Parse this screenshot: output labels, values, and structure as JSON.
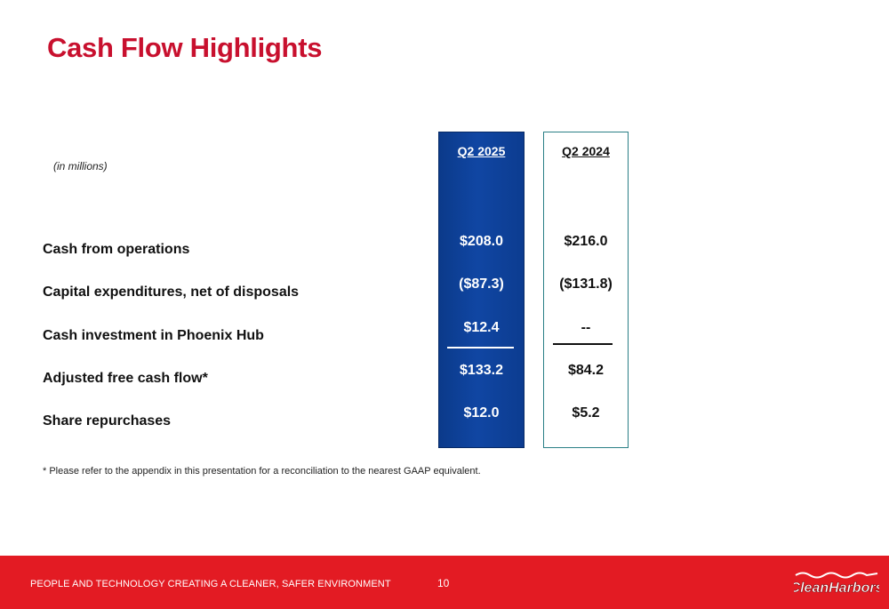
{
  "title": "Cash Flow Highlights",
  "units_note": "(in millions)",
  "columns": [
    {
      "header": "Q2 2025",
      "values": [
        "$208.0",
        "($87.3)",
        "$12.4",
        "$133.2",
        "$12.0"
      ]
    },
    {
      "header": "Q2 2024",
      "values": [
        "$216.0",
        "($131.8)",
        "--",
        "$84.2",
        "$5.2"
      ]
    }
  ],
  "rows": [
    "Cash from operations",
    "Capital expenditures, net of disposals",
    "Cash investment in Phoenix Hub",
    "Adjusted free cash flow*",
    "Share repurchases"
  ],
  "footnote": "* Please refer to the appendix in this presentation for a reconciliation to the nearest GAAP equivalent.",
  "footer": {
    "tagline": "PEOPLE AND TECHNOLOGY CREATING A CLEANER, SAFER ENVIRONMENT",
    "page_number": "10",
    "logo_text": "CleanHarbors"
  },
  "colors": {
    "title_red": "#c8102e",
    "footer_red": "#e31b23",
    "current_column_blue": "#0b3a8a",
    "prior_column_border": "#2a7f86"
  }
}
